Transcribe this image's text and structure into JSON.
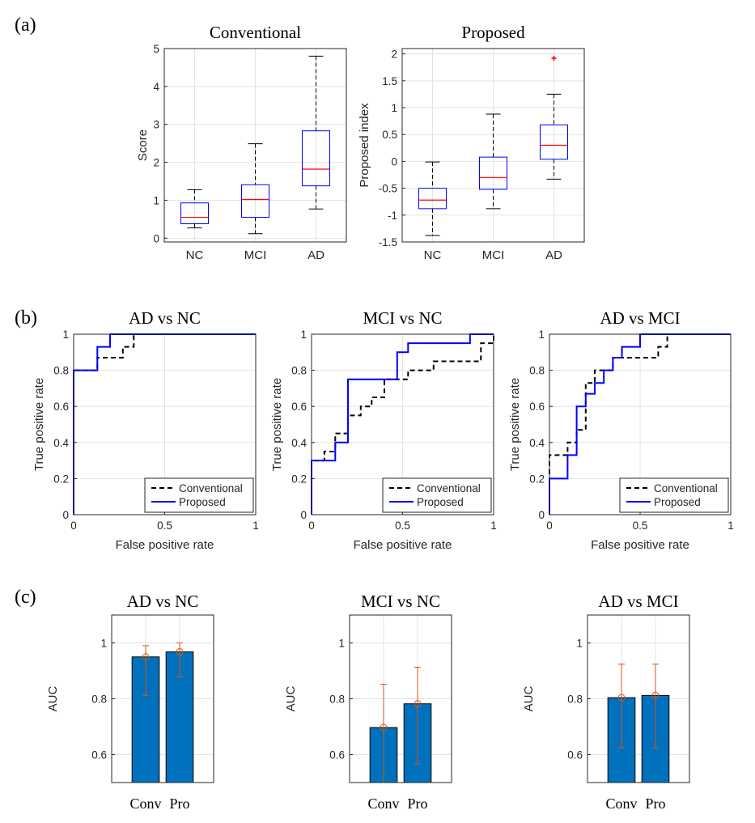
{
  "panel_labels": {
    "a": "(a)",
    "b": "(b)",
    "c": "(c)"
  },
  "colors": {
    "box": "#0000ff",
    "median": "#ff0000",
    "outlier": "#ff0000",
    "conventional_line": "#000000",
    "proposed_line": "#0000ff",
    "bar": "#0072bd",
    "errorbar": "#d95319",
    "grid": "#e3e3e3"
  },
  "chart_data": [
    {
      "id": "box-conventional",
      "type": "box",
      "title": "Conventional",
      "ylabel": "Score",
      "xlabel": "",
      "categories": [
        "NC",
        "MCI",
        "AD"
      ],
      "ylim": [
        -0.1,
        5
      ],
      "yticks": [
        0,
        1,
        2,
        3,
        4,
        5
      ],
      "grid": true,
      "boxes": [
        {
          "name": "NC",
          "whisker_low": 0.27,
          "q1": 0.38,
          "median": 0.55,
          "q3": 0.93,
          "whisker_high": 1.28,
          "outliers": []
        },
        {
          "name": "MCI",
          "whisker_low": 0.12,
          "q1": 0.55,
          "median": 1.02,
          "q3": 1.41,
          "whisker_high": 2.49,
          "outliers": []
        },
        {
          "name": "AD",
          "whisker_low": 0.77,
          "q1": 1.38,
          "median": 1.82,
          "q3": 2.83,
          "whisker_high": 4.8,
          "outliers": []
        }
      ]
    },
    {
      "id": "box-proposed",
      "type": "box",
      "title": "Proposed",
      "ylabel": "Proposed index",
      "xlabel": "",
      "categories": [
        "NC",
        "MCI",
        "AD"
      ],
      "ylim": [
        -1.5,
        2.1
      ],
      "yticks": [
        -1.5,
        -1,
        -0.5,
        0,
        0.5,
        1,
        1.5,
        2
      ],
      "grid": true,
      "boxes": [
        {
          "name": "NC",
          "whisker_low": -1.38,
          "q1": -0.88,
          "median": -0.72,
          "q3": -0.5,
          "whisker_high": -0.01,
          "outliers": []
        },
        {
          "name": "MCI",
          "whisker_low": -0.88,
          "q1": -0.52,
          "median": -0.3,
          "q3": 0.08,
          "whisker_high": 0.88,
          "outliers": []
        },
        {
          "name": "AD",
          "whisker_low": -0.33,
          "q1": 0.04,
          "median": 0.3,
          "q3": 0.68,
          "whisker_high": 1.25,
          "outliers": [
            1.92
          ]
        }
      ]
    },
    {
      "id": "roc-ad-nc",
      "type": "line",
      "title": "AD vs NC",
      "xlabel": "False positive rate",
      "ylabel": "True positive rate",
      "xlim": [
        0,
        1
      ],
      "ylim": [
        0,
        1
      ],
      "xticks": [
        0,
        0.5,
        1
      ],
      "yticks": [
        0,
        0.2,
        0.4,
        0.6,
        0.8,
        1
      ],
      "grid": true,
      "legend": "bottom-right",
      "series": [
        {
          "name": "Conventional",
          "style": "dashed",
          "x": [
            0,
            0,
            0.13,
            0.13,
            0.2,
            0.2,
            0.27,
            0.27,
            0.33,
            0.33,
            1
          ],
          "y": [
            0,
            0.8,
            0.8,
            0.87,
            0.87,
            0.87,
            0.87,
            0.93,
            0.93,
            1,
            1
          ]
        },
        {
          "name": "Proposed",
          "style": "solid",
          "x": [
            0,
            0,
            0.13,
            0.13,
            0.2,
            0.2,
            1
          ],
          "y": [
            0,
            0.8,
            0.8,
            0.93,
            0.93,
            1,
            1
          ]
        }
      ]
    },
    {
      "id": "roc-mci-nc",
      "type": "line",
      "title": "MCI vs NC",
      "xlabel": "False positive rate",
      "ylabel": "True positive rate",
      "xlim": [
        0,
        1
      ],
      "ylim": [
        0,
        1
      ],
      "xticks": [
        0,
        0.5,
        1
      ],
      "yticks": [
        0,
        0.2,
        0.4,
        0.6,
        0.8,
        1
      ],
      "grid": true,
      "legend": "bottom-right",
      "series": [
        {
          "name": "Conventional",
          "style": "dashed",
          "x": [
            0,
            0,
            0.07,
            0.07,
            0.13,
            0.13,
            0.2,
            0.2,
            0.27,
            0.27,
            0.33,
            0.33,
            0.4,
            0.4,
            0.47,
            0.47,
            0.53,
            0.53,
            0.67,
            0.67,
            0.87,
            0.87,
            0.93,
            0.93,
            1,
            1
          ],
          "y": [
            0,
            0.3,
            0.3,
            0.35,
            0.35,
            0.45,
            0.45,
            0.55,
            0.55,
            0.6,
            0.6,
            0.65,
            0.65,
            0.75,
            0.75,
            0.75,
            0.75,
            0.8,
            0.8,
            0.85,
            0.85,
            0.85,
            0.85,
            0.95,
            0.95,
            1
          ]
        },
        {
          "name": "Proposed",
          "style": "solid",
          "x": [
            0,
            0,
            0.13,
            0.13,
            0.2,
            0.2,
            0.47,
            0.47,
            0.53,
            0.53,
            0.87,
            0.87,
            1
          ],
          "y": [
            0,
            0.3,
            0.3,
            0.4,
            0.4,
            0.75,
            0.75,
            0.9,
            0.9,
            0.95,
            0.95,
            1,
            1
          ]
        }
      ]
    },
    {
      "id": "roc-ad-mci",
      "type": "line",
      "title": "AD vs MCI",
      "xlabel": "False positive rate",
      "ylabel": "True positive rate",
      "xlim": [
        0,
        1
      ],
      "ylim": [
        0,
        1
      ],
      "xticks": [
        0,
        0.5,
        1
      ],
      "yticks": [
        0,
        0.2,
        0.4,
        0.6,
        0.8,
        1
      ],
      "grid": true,
      "legend": "bottom-right",
      "series": [
        {
          "name": "Conventional",
          "style": "dashed",
          "x": [
            0,
            0,
            0.1,
            0.1,
            0.15,
            0.15,
            0.2,
            0.2,
            0.25,
            0.25,
            0.3,
            0.3,
            0.35,
            0.35,
            0.6,
            0.6,
            0.65,
            0.65,
            1
          ],
          "y": [
            0,
            0.33,
            0.33,
            0.4,
            0.4,
            0.47,
            0.47,
            0.73,
            0.73,
            0.8,
            0.8,
            0.8,
            0.8,
            0.87,
            0.87,
            0.93,
            0.93,
            1,
            1
          ]
        },
        {
          "name": "Proposed",
          "style": "solid",
          "x": [
            0,
            0,
            0.1,
            0.1,
            0.15,
            0.15,
            0.2,
            0.2,
            0.25,
            0.25,
            0.3,
            0.3,
            0.35,
            0.35,
            0.4,
            0.4,
            0.5,
            0.5,
            1
          ],
          "y": [
            0,
            0.2,
            0.2,
            0.33,
            0.33,
            0.6,
            0.6,
            0.67,
            0.67,
            0.73,
            0.73,
            0.8,
            0.8,
            0.87,
            0.87,
            0.93,
            0.93,
            1,
            1
          ]
        }
      ]
    },
    {
      "id": "bar-ad-nc",
      "type": "bar",
      "title": "AD vs NC",
      "ylabel": "AUC",
      "xlabel": "",
      "categories": [
        "Conv",
        "Pro"
      ],
      "values": [
        0.95,
        0.968
      ],
      "error_low": [
        0.812,
        0.878
      ],
      "error_high": [
        0.99,
        1.0
      ],
      "ylim": [
        0.5,
        1.1
      ],
      "yticks": [
        0.6,
        0.8,
        1
      ],
      "grid": true
    },
    {
      "id": "bar-mci-nc",
      "type": "bar",
      "title": "MCI vs NC",
      "ylabel": "AUC",
      "xlabel": "",
      "categories": [
        "Conv",
        "Pro"
      ],
      "values": [
        0.697,
        0.782
      ],
      "error_low": [
        0.5,
        0.567
      ],
      "error_high": [
        0.852,
        0.913
      ],
      "ylim": [
        0.5,
        1.1
      ],
      "yticks": [
        0.6,
        0.8,
        1
      ],
      "grid": true
    },
    {
      "id": "bar-ad-mci",
      "type": "bar",
      "title": "AD vs MCI",
      "ylabel": "AUC",
      "xlabel": "",
      "categories": [
        "Conv",
        "Pro"
      ],
      "values": [
        0.804,
        0.812
      ],
      "error_low": [
        0.625,
        0.625
      ],
      "error_high": [
        0.924,
        0.924
      ],
      "ylim": [
        0.5,
        1.1
      ],
      "yticks": [
        0.6,
        0.8,
        1
      ],
      "grid": true
    }
  ]
}
